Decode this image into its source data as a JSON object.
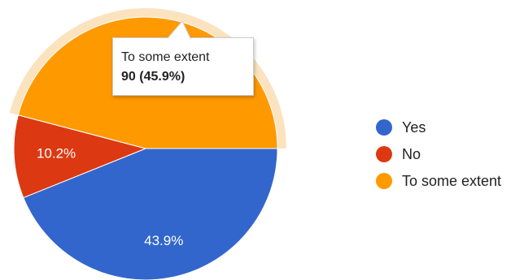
{
  "chart_data": {
    "type": "pie",
    "slices": [
      {
        "label": "Yes",
        "percent": 43.9,
        "color": "#3366cc",
        "data_label": "43.9%"
      },
      {
        "label": "No",
        "percent": 10.2,
        "color": "#dc3912",
        "data_label": "10.2%"
      },
      {
        "label": "To some extent",
        "percent": 45.9,
        "color": "#ff9900",
        "data_label": "",
        "value": 90,
        "highlighted": true
      }
    ],
    "legend_position": "right",
    "tooltip": {
      "title": "To some extent",
      "value_text": "90 (45.9%)"
    },
    "highlight_color": "#fbe3bf"
  }
}
